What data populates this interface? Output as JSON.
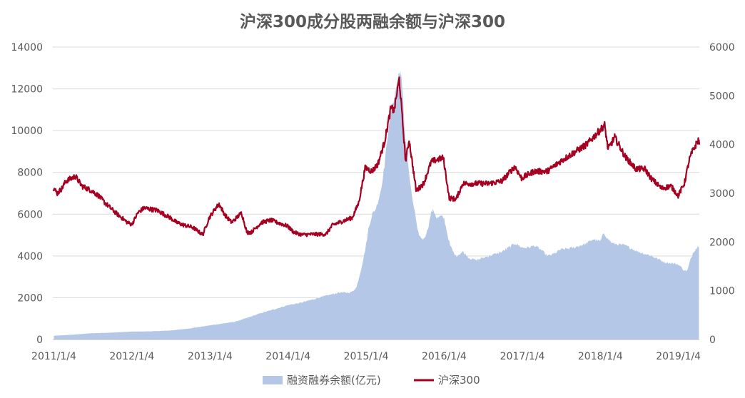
{
  "chart_data": {
    "type": "area+line",
    "title": "沪深300成分股两融余额与沪深300",
    "x_axis": {
      "start": "2010-12-30",
      "end": "2019-04-12",
      "tick_labels": [
        "2011/1/4",
        "2012/1/4",
        "2013/1/4",
        "2014/1/4",
        "2015/1/4",
        "2016/1/4",
        "2017/1/4",
        "2018/1/4",
        "2019/1/4"
      ],
      "tick_dates": [
        "2011-01-04",
        "2012-01-04",
        "2013-01-04",
        "2014-01-04",
        "2015-01-04",
        "2016-01-04",
        "2017-01-04",
        "2018-01-04",
        "2019-01-04"
      ]
    },
    "y_left": {
      "min": 0,
      "max": 14000,
      "ticks": [
        0,
        2000,
        4000,
        6000,
        8000,
        10000,
        12000,
        14000
      ],
      "tick_labels": [
        "0",
        "2000",
        "4000",
        "6000",
        "8000",
        "10000",
        "12000",
        "14000"
      ]
    },
    "y_right": {
      "min": 0,
      "max": 6000,
      "ticks": [
        0,
        1000,
        2000,
        3000,
        4000,
        5000,
        6000
      ],
      "tick_labels": [
        "0",
        "1000",
        "2000",
        "3000",
        "4000",
        "5000",
        "6000"
      ]
    },
    "grid": "horizontal",
    "legend_position": "bottom",
    "series": [
      {
        "name": "融资融券余额(亿元)",
        "type": "area",
        "axis": "left",
        "color": "#b4c7e7",
        "points": [
          [
            "2011-01-04",
            180
          ],
          [
            "2011-04-01",
            230
          ],
          [
            "2011-07-01",
            300
          ],
          [
            "2011-10-01",
            330
          ],
          [
            "2012-01-04",
            380
          ],
          [
            "2012-04-01",
            390
          ],
          [
            "2012-07-01",
            430
          ],
          [
            "2012-10-01",
            530
          ],
          [
            "2013-01-04",
            680
          ],
          [
            "2013-03-01",
            760
          ],
          [
            "2013-05-01",
            850
          ],
          [
            "2013-07-01",
            1050
          ],
          [
            "2013-09-01",
            1270
          ],
          [
            "2013-11-01",
            1450
          ],
          [
            "2014-01-04",
            1650
          ],
          [
            "2014-03-01",
            1750
          ],
          [
            "2014-05-01",
            1920
          ],
          [
            "2014-07-01",
            2100
          ],
          [
            "2014-09-01",
            2250
          ],
          [
            "2014-10-15",
            2240
          ],
          [
            "2014-11-01",
            2300
          ],
          [
            "2014-11-20",
            2500
          ],
          [
            "2014-12-10",
            3300
          ],
          [
            "2014-12-31",
            4300
          ],
          [
            "2015-01-15",
            5300
          ],
          [
            "2015-02-01",
            6000
          ],
          [
            "2015-02-15",
            6200
          ],
          [
            "2015-03-01",
            6600
          ],
          [
            "2015-03-15",
            7200
          ],
          [
            "2015-04-01",
            8400
          ],
          [
            "2015-04-15",
            9800
          ],
          [
            "2015-05-01",
            11000
          ],
          [
            "2015-05-20",
            11800
          ],
          [
            "2015-06-05",
            12700
          ],
          [
            "2015-06-15",
            12800
          ],
          [
            "2015-06-25",
            11600
          ],
          [
            "2015-07-05",
            9700
          ],
          [
            "2015-07-20",
            8300
          ],
          [
            "2015-08-05",
            6900
          ],
          [
            "2015-08-20",
            6100
          ],
          [
            "2015-09-01",
            5200
          ],
          [
            "2015-09-15",
            4900
          ],
          [
            "2015-10-01",
            4800
          ],
          [
            "2015-10-20",
            5300
          ],
          [
            "2015-11-05",
            6100
          ],
          [
            "2015-11-15",
            6200
          ],
          [
            "2015-12-01",
            5800
          ],
          [
            "2015-12-20",
            5900
          ],
          [
            "2016-01-04",
            5800
          ],
          [
            "2016-01-20",
            5000
          ],
          [
            "2016-02-01",
            4500
          ],
          [
            "2016-02-20",
            4100
          ],
          [
            "2016-03-01",
            4000
          ],
          [
            "2016-04-01",
            4200
          ],
          [
            "2016-05-01",
            3900
          ],
          [
            "2016-06-01",
            3800
          ],
          [
            "2016-08-01",
            4000
          ],
          [
            "2016-10-01",
            4200
          ],
          [
            "2016-12-01",
            4600
          ],
          [
            "2017-01-04",
            4400
          ],
          [
            "2017-02-01",
            4400
          ],
          [
            "2017-03-01",
            4500
          ],
          [
            "2017-04-01",
            4300
          ],
          [
            "2017-05-01",
            4000
          ],
          [
            "2017-06-01",
            4100
          ],
          [
            "2017-07-01",
            4300
          ],
          [
            "2017-09-01",
            4400
          ],
          [
            "2017-11-01",
            4600
          ],
          [
            "2017-12-01",
            4800
          ],
          [
            "2018-01-04",
            4700
          ],
          [
            "2018-01-20",
            5100
          ],
          [
            "2018-02-10",
            4800
          ],
          [
            "2018-03-01",
            4600
          ],
          [
            "2018-05-01",
            4500
          ],
          [
            "2018-07-01",
            4200
          ],
          [
            "2018-09-01",
            4000
          ],
          [
            "2018-11-01",
            3700
          ],
          [
            "2019-01-04",
            3600
          ],
          [
            "2019-02-01",
            3300
          ],
          [
            "2019-02-15",
            3300
          ],
          [
            "2019-03-01",
            3800
          ],
          [
            "2019-03-15",
            4200
          ],
          [
            "2019-04-10",
            4500
          ]
        ]
      },
      {
        "name": "沪深300",
        "type": "line",
        "axis": "right",
        "color": "#a50021",
        "points": [
          [
            "2010-12-31",
            3128
          ],
          [
            "2011-01-20",
            3000
          ],
          [
            "2011-02-10",
            3100
          ],
          [
            "2011-03-01",
            3250
          ],
          [
            "2011-04-15",
            3350
          ],
          [
            "2011-05-15",
            3150
          ],
          [
            "2011-07-01",
            3050
          ],
          [
            "2011-08-01",
            2950
          ],
          [
            "2011-09-01",
            2800
          ],
          [
            "2011-10-20",
            2600
          ],
          [
            "2011-12-15",
            2400
          ],
          [
            "2012-01-04",
            2360
          ],
          [
            "2012-02-01",
            2600
          ],
          [
            "2012-03-01",
            2700
          ],
          [
            "2012-05-01",
            2650
          ],
          [
            "2012-07-01",
            2500
          ],
          [
            "2012-08-01",
            2400
          ],
          [
            "2012-09-01",
            2350
          ],
          [
            "2012-10-15",
            2300
          ],
          [
            "2012-12-01",
            2150
          ],
          [
            "2012-12-31",
            2500
          ],
          [
            "2013-01-31",
            2700
          ],
          [
            "2013-02-15",
            2780
          ],
          [
            "2013-03-15",
            2550
          ],
          [
            "2013-04-15",
            2400
          ],
          [
            "2013-05-31",
            2600
          ],
          [
            "2013-06-25",
            2200
          ],
          [
            "2013-07-15",
            2200
          ],
          [
            "2013-09-01",
            2400
          ],
          [
            "2013-10-15",
            2450
          ],
          [
            "2013-11-15",
            2400
          ],
          [
            "2013-12-31",
            2330
          ],
          [
            "2014-01-31",
            2200
          ],
          [
            "2014-03-10",
            2150
          ],
          [
            "2014-04-30",
            2160
          ],
          [
            "2014-06-30",
            2160
          ],
          [
            "2014-07-31",
            2350
          ],
          [
            "2014-09-30",
            2450
          ],
          [
            "2014-10-31",
            2500
          ],
          [
            "2014-11-30",
            2800
          ],
          [
            "2014-12-31",
            3530
          ],
          [
            "2015-01-31",
            3450
          ],
          [
            "2015-02-28",
            3600
          ],
          [
            "2015-03-31",
            4050
          ],
          [
            "2015-04-30",
            4750
          ],
          [
            "2015-05-15",
            4700
          ],
          [
            "2015-06-08",
            5350
          ],
          [
            "2015-07-08",
            3650
          ],
          [
            "2015-07-24",
            4100
          ],
          [
            "2015-08-26",
            3050
          ],
          [
            "2015-09-30",
            3200
          ],
          [
            "2015-11-05",
            3650
          ],
          [
            "2015-12-31",
            3730
          ],
          [
            "2016-01-28",
            2900
          ],
          [
            "2016-02-29",
            2880
          ],
          [
            "2016-03-31",
            3200
          ],
          [
            "2016-05-31",
            3200
          ],
          [
            "2016-07-31",
            3200
          ],
          [
            "2016-09-30",
            3250
          ],
          [
            "2016-11-30",
            3550
          ],
          [
            "2016-12-31",
            3310
          ],
          [
            "2017-02-28",
            3450
          ],
          [
            "2017-04-30",
            3450
          ],
          [
            "2017-06-30",
            3650
          ],
          [
            "2017-08-31",
            3830
          ],
          [
            "2017-10-31",
            4000
          ],
          [
            "2017-11-22",
            4100
          ],
          [
            "2018-01-24",
            4400
          ],
          [
            "2018-02-09",
            3900
          ],
          [
            "2018-03-12",
            4150
          ],
          [
            "2018-04-30",
            3750
          ],
          [
            "2018-06-19",
            3500
          ],
          [
            "2018-07-31",
            3500
          ],
          [
            "2018-08-31",
            3300
          ],
          [
            "2018-10-18",
            3100
          ],
          [
            "2018-11-30",
            3150
          ],
          [
            "2019-01-03",
            2950
          ],
          [
            "2019-02-01",
            3200
          ],
          [
            "2019-02-25",
            3700
          ],
          [
            "2019-03-10",
            3850
          ],
          [
            "2019-04-08",
            4100
          ],
          [
            "2019-04-12",
            4000
          ]
        ]
      }
    ]
  }
}
